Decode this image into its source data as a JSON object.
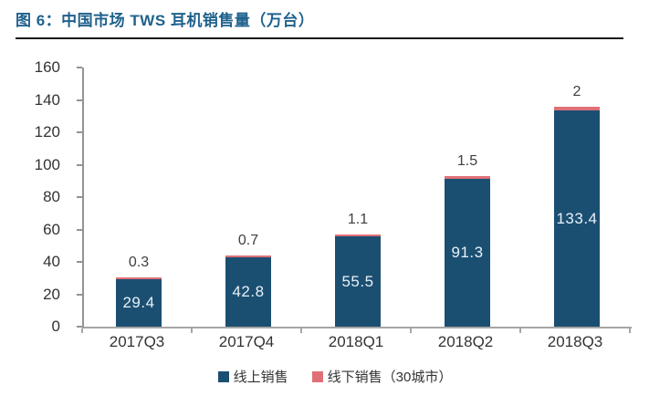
{
  "title": "图 6：中国市场 TWS 耳机销售量（万台）",
  "colors": {
    "title_text": "#1f618d",
    "online_bar": "#1b4f72",
    "offline_bar": "#df7078",
    "axis_line": "#a6a6a6",
    "tick_label": "#333333",
    "value_label_dark": "#3f3f3f",
    "value_label_light": "#e8f1f8",
    "divider": "#1a1a1a"
  },
  "chart_data": {
    "type": "bar",
    "stacked": true,
    "title": "图 6：中国市场 TWS 耳机销售量（万台）",
    "categories": [
      "2017Q3",
      "2017Q4",
      "2018Q1",
      "2018Q2",
      "2018Q3"
    ],
    "series": [
      {
        "name": "线上销售",
        "values": [
          29.4,
          42.8,
          55.5,
          91.3,
          133.4
        ],
        "color": "#1b4f72"
      },
      {
        "name": "线下销售（30城市）",
        "values": [
          0.3,
          0.7,
          1.1,
          1.5,
          2
        ],
        "color": "#df7078"
      }
    ],
    "value_labels": {
      "online": [
        "29.4",
        "42.8",
        "55.5",
        "91.3",
        "133.4"
      ],
      "offline": [
        "0.3",
        "0.7",
        "1.1",
        "1.5",
        "2"
      ]
    },
    "xlabel": "",
    "ylabel": "",
    "ylim": [
      0,
      160
    ],
    "yticks": [
      0,
      20,
      40,
      60,
      80,
      100,
      120,
      140,
      160
    ],
    "grid": false,
    "legend_position": "bottom"
  }
}
